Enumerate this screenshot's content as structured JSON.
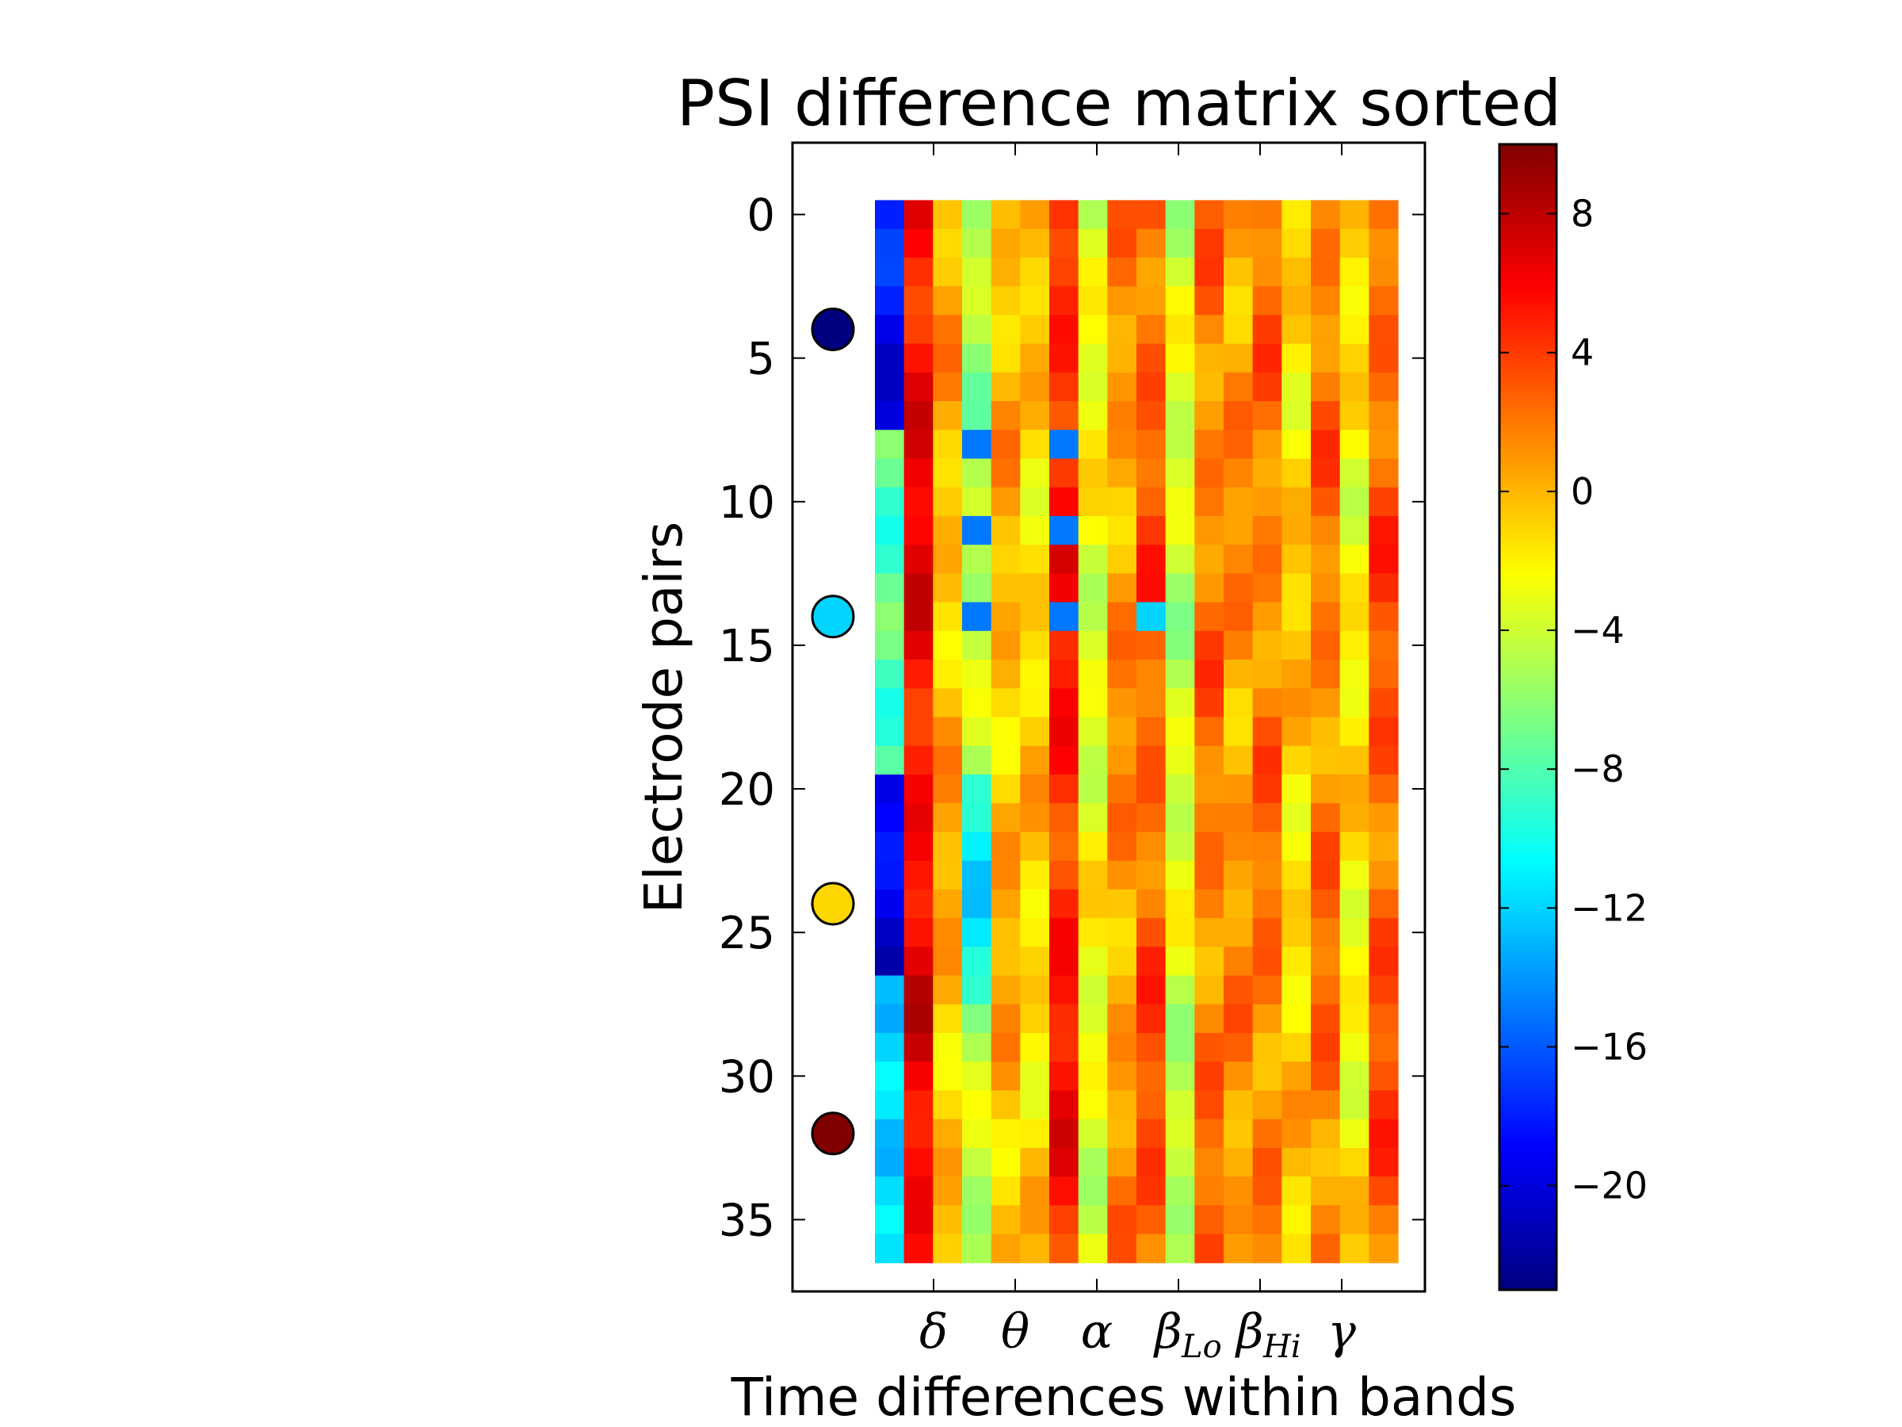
{
  "chart_data": {
    "type": "heatmap",
    "title": "PSI difference matrix sorted",
    "xlabel": "Time differences within bands",
    "ylabel": "Electrode pairs",
    "ylim": [
      37.5,
      -2.5
    ],
    "y_ticks": [
      "0",
      "5",
      "10",
      "15",
      "20",
      "25",
      "30",
      "35"
    ],
    "x_tick_labels": [
      {
        "main": "δ",
        "sub": ""
      },
      {
        "main": "θ",
        "sub": ""
      },
      {
        "main": "α",
        "sub": ""
      },
      {
        "main": "β",
        "sub": "Lo"
      },
      {
        "main": "β",
        "sub": "Hi"
      },
      {
        "main": "γ",
        "sub": ""
      }
    ],
    "colorbar": {
      "colormap": "jet",
      "range": [
        -23,
        10
      ],
      "ticks": [
        "8",
        "4",
        "0",
        "−4",
        "−8",
        "−12",
        "−16",
        "−20"
      ]
    },
    "matrix_shape": {
      "rows": 37,
      "columns": 18
    },
    "column_profile": [
      -19,
      6,
      0,
      -5,
      0,
      -1,
      5,
      -3,
      1,
      3,
      -4,
      2,
      1,
      2,
      -1,
      2,
      -2,
      3
    ],
    "highlighted_pairs": [
      {
        "row": 4,
        "color": "#000080"
      },
      {
        "row": 14,
        "color": "#00d4ff"
      },
      {
        "row": 24,
        "color": "#ffd700"
      },
      {
        "row": 32,
        "color": "#800000"
      }
    ]
  }
}
